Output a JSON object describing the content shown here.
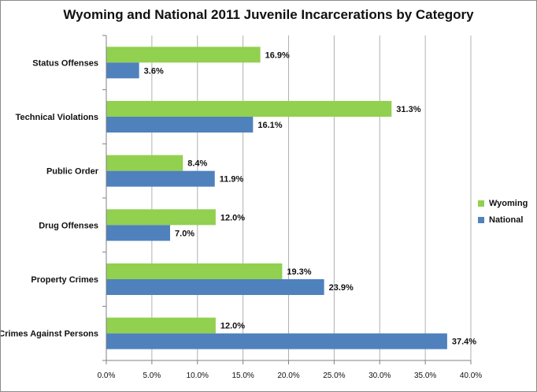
{
  "chart_data": {
    "type": "bar",
    "orientation": "horizontal",
    "title": "Wyoming and National 2011 Juvenile Incarcerations by Category",
    "categories": [
      "Status Offenses",
      "Technical Violations",
      "Public Order",
      "Drug Offenses",
      "Property Crimes",
      "Crimes Against Persons"
    ],
    "series": [
      {
        "name": "Wyoming",
        "color": "#92d050",
        "values": [
          16.9,
          31.3,
          8.4,
          12.0,
          19.3,
          12.0
        ],
        "labels": [
          "16.9%",
          "31.3%",
          "8.4%",
          "12.0%",
          "19.3%",
          "12.0%"
        ]
      },
      {
        "name": "National",
        "color": "#4f81bd",
        "values": [
          3.6,
          16.1,
          11.9,
          7.0,
          23.9,
          37.4
        ],
        "labels": [
          "3.6%",
          "16.1%",
          "11.9%",
          "7.0%",
          "23.9%",
          "37.4%"
        ]
      }
    ],
    "xlim": [
      0,
      40
    ],
    "x_ticks": [
      0,
      5,
      10,
      15,
      20,
      25,
      30,
      35,
      40
    ],
    "x_tick_labels": [
      "0.0%",
      "5.0%",
      "10.0%",
      "15.0%",
      "20.0%",
      "25.0%",
      "30.0%",
      "35.0%",
      "40.0%"
    ],
    "grid": "vertical",
    "legend_position": "right"
  }
}
